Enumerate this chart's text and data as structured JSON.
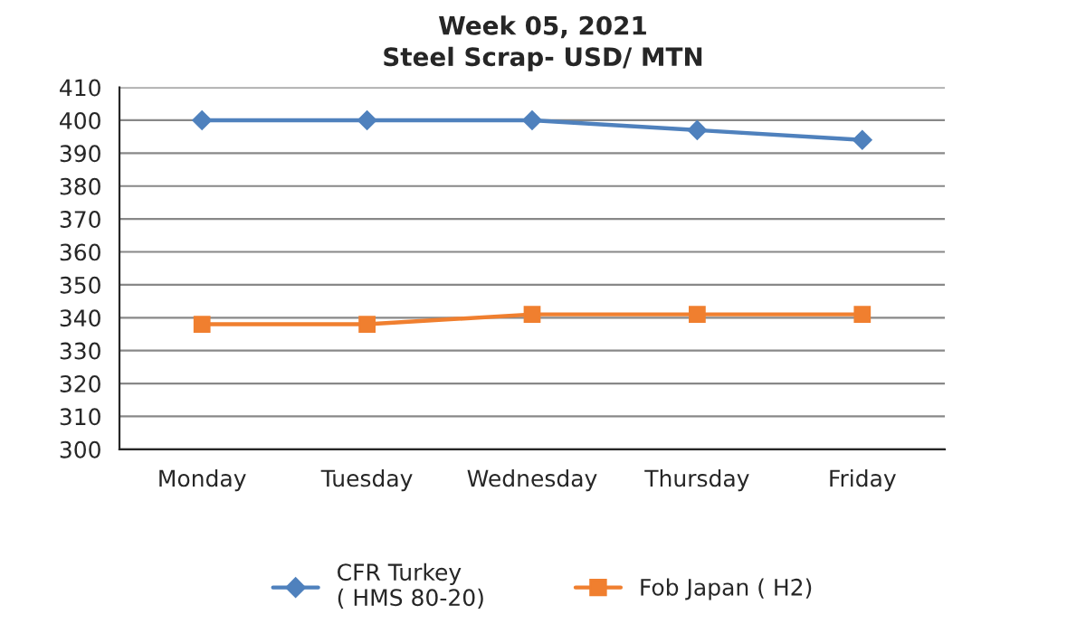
{
  "chart_data": {
    "type": "line",
    "title": "Week 05, 2021",
    "subtitle": "Steel Scrap- USD/ MTN",
    "categories": [
      "Monday",
      "Tuesday",
      "Wednesday",
      "Thursday",
      "Friday"
    ],
    "series": [
      {
        "name": "CFR Turkey\n( HMS 80-20)",
        "color": "#4f81bd",
        "marker": "diamond",
        "values": [
          400,
          400,
          400,
          397,
          394
        ]
      },
      {
        "name": "Fob Japan ( H2)",
        "color": "#f07f2f",
        "marker": "square",
        "values": [
          338,
          338,
          341,
          341,
          341
        ]
      }
    ],
    "ylim": [
      300,
      410
    ],
    "yticks": [
      300,
      310,
      320,
      330,
      340,
      350,
      360,
      370,
      380,
      390,
      400,
      410
    ],
    "grid": "y",
    "legend": "bottom"
  }
}
